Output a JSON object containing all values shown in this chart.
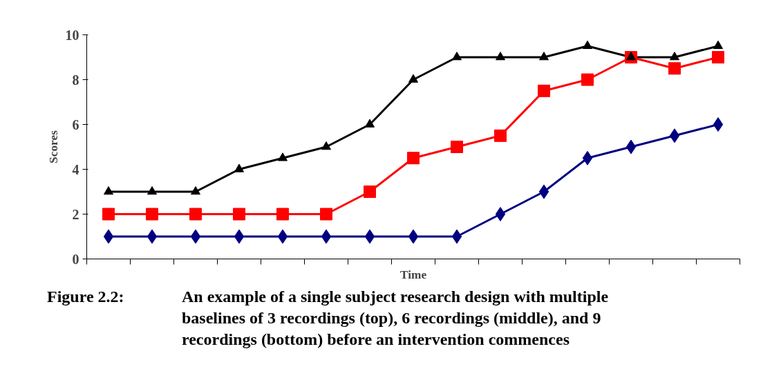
{
  "chart_data": {
    "type": "line",
    "xlabel": "Time",
    "ylabel": "Scores",
    "categories": [
      null,
      null,
      null,
      null,
      null,
      null,
      null,
      null,
      null,
      null,
      null,
      null,
      null,
      null,
      null
    ],
    "series": [
      {
        "color": "#000000",
        "marker": "triangle",
        "values": [
          3,
          3,
          3,
          4,
          4.5,
          5,
          6,
          8,
          9,
          9,
          9,
          9.5,
          9,
          9,
          9.5
        ]
      },
      {
        "color": "#ff0000",
        "marker": "square",
        "values": [
          2,
          2,
          2,
          2,
          2,
          2,
          3,
          4.5,
          5,
          5.5,
          7.5,
          8,
          9,
          8.5,
          9
        ]
      },
      {
        "color": "#000080",
        "marker": "diamond",
        "values": [
          1,
          1,
          1,
          1,
          1,
          1,
          1,
          1,
          1,
          2,
          3,
          4.5,
          5,
          5.5,
          6
        ]
      }
    ],
    "ylim": [
      0,
      10
    ],
    "yticks": [
      0,
      2,
      4,
      6,
      8,
      10
    ],
    "grid": false,
    "line_style": "solid",
    "annotations": [
      "Figure 2.2:",
      "An example of a single subject research design with multiple baselines of 3 recordings (top), 6 recordings (middle), and 9 recordings (bottom) before an intervention commences"
    ]
  }
}
